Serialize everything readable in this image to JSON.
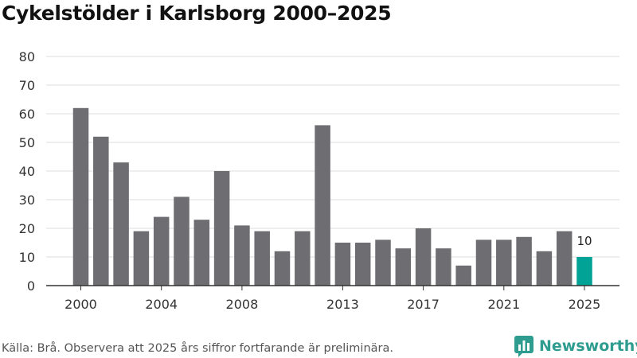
{
  "chart_data": {
    "type": "bar",
    "title": "Cykelstölder i Karlsborg 2000–2025",
    "categories": [
      "2000",
      "2001",
      "2002",
      "2003",
      "2004",
      "2005",
      "2006",
      "2007",
      "2008",
      "2009",
      "2010",
      "2011",
      "2012",
      "2013",
      "2014",
      "2015",
      "2016",
      "2017",
      "2018",
      "2019",
      "2020",
      "2021",
      "2022",
      "2023",
      "2024",
      "2025"
    ],
    "values": [
      62,
      52,
      43,
      19,
      24,
      31,
      23,
      40,
      21,
      19,
      12,
      19,
      56,
      15,
      15,
      16,
      13,
      20,
      13,
      7,
      16,
      16,
      17,
      12,
      19,
      10
    ],
    "x_tick_labels": [
      "2000",
      "2004",
      "2008",
      "2013",
      "2017",
      "2021",
      "2025"
    ],
    "y_ticks": [
      0,
      10,
      20,
      30,
      40,
      50,
      60,
      70,
      80
    ],
    "ylim": [
      0,
      80
    ],
    "xlabel": "",
    "ylabel": "",
    "highlight": {
      "category": "2025",
      "label": "10"
    },
    "grid": true,
    "colors": {
      "bar": "#6e6d72",
      "highlight": "#00a396",
      "grid": "#dddddd",
      "axis": "#333333"
    }
  },
  "footer": {
    "source": "Källa: Brå. Observera att 2025 års siffror fortfarande är preliminära.",
    "logo_text": "Newsworthy",
    "logo_icon": "newsworthy-chart-icon"
  }
}
